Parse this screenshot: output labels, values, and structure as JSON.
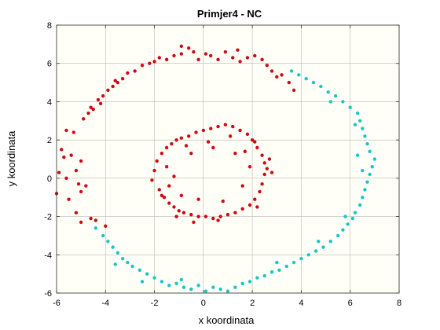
{
  "chart_data": {
    "type": "scatter",
    "title": "Primjer4 - NC",
    "xlabel": "x koordinata",
    "ylabel": "y koordinata",
    "xlim": [
      -6,
      8
    ],
    "ylim": [
      -6,
      8
    ],
    "xticks": [
      -6,
      -4,
      -2,
      0,
      2,
      4,
      6,
      8
    ],
    "yticks": [
      -6,
      -4,
      -2,
      0,
      2,
      4,
      6,
      8
    ],
    "grid": true,
    "colors": {
      "plot_background": "#fffff7",
      "grid": "#b8b8b8",
      "axis": "#333333"
    },
    "series": [
      {
        "color": "#cc0a14",
        "points": [
          [
            -6.0,
            -0.8
          ],
          [
            -5.9,
            0.3
          ],
          [
            -5.8,
            1.5
          ],
          [
            -5.7,
            1.1
          ],
          [
            -5.6,
            0.0
          ],
          [
            -5.5,
            -1.1
          ],
          [
            -5.4,
            1.2
          ],
          [
            -5.3,
            2.4
          ],
          [
            -5.2,
            -1.8
          ],
          [
            -5.1,
            -0.3
          ],
          [
            -5.0,
            0.9
          ],
          [
            -5.2,
            0.4
          ],
          [
            -5.0,
            -0.7
          ],
          [
            -4.9,
            3.1
          ],
          [
            -4.7,
            3.4
          ],
          [
            -4.6,
            3.7
          ],
          [
            -4.6,
            -2.1
          ],
          [
            -4.5,
            3.6
          ],
          [
            -4.4,
            -2.2
          ],
          [
            -4.3,
            4.1
          ],
          [
            -4.1,
            4.3
          ],
          [
            -4.0,
            -2.5
          ],
          [
            -3.9,
            4.6
          ],
          [
            -3.7,
            4.8
          ],
          [
            -3.5,
            5.0
          ],
          [
            -3.3,
            5.2
          ],
          [
            -3.1,
            5.5
          ],
          [
            -2.8,
            5.6
          ],
          [
            -2.5,
            5.9
          ],
          [
            -2.2,
            6.0
          ],
          [
            -2.0,
            6.1
          ],
          [
            -1.8,
            6.3
          ],
          [
            -1.5,
            6.2
          ],
          [
            -1.2,
            6.4
          ],
          [
            -0.9,
            6.5
          ],
          [
            -0.6,
            6.8
          ],
          [
            -0.4,
            6.6
          ],
          [
            -0.2,
            6.2
          ],
          [
            0.1,
            6.5
          ],
          [
            0.3,
            6.4
          ],
          [
            0.6,
            6.2
          ],
          [
            0.9,
            6.6
          ],
          [
            1.2,
            6.3
          ],
          [
            1.5,
            6.1
          ],
          [
            1.8,
            6.3
          ],
          [
            2.1,
            6.4
          ],
          [
            2.4,
            6.2
          ],
          [
            2.6,
            5.9
          ],
          [
            2.8,
            5.6
          ],
          [
            3.0,
            5.3
          ],
          [
            3.2,
            5.4
          ],
          [
            3.5,
            5.0
          ],
          [
            3.7,
            4.6
          ],
          [
            -5.0,
            -2.3
          ],
          [
            -4.8,
            -0.4
          ],
          [
            -5.6,
            2.5
          ],
          [
            -4.2,
            3.9
          ],
          [
            -3.6,
            5.1
          ],
          [
            -0.9,
            6.9
          ],
          [
            1.4,
            6.7
          ],
          [
            -2.1,
            -0.1
          ],
          [
            -2.0,
            0.4
          ],
          [
            -1.9,
            0.9
          ],
          [
            -1.8,
            -0.6
          ],
          [
            -1.7,
            1.3
          ],
          [
            -1.6,
            -1.0
          ],
          [
            -1.5,
            1.6
          ],
          [
            -1.4,
            -1.3
          ],
          [
            -1.3,
            1.8
          ],
          [
            -1.2,
            -1.5
          ],
          [
            -1.1,
            2.0
          ],
          [
            -1.0,
            -1.7
          ],
          [
            -0.9,
            2.1
          ],
          [
            -0.8,
            -1.8
          ],
          [
            -0.6,
            2.2
          ],
          [
            -0.5,
            -1.9
          ],
          [
            -0.3,
            2.4
          ],
          [
            -0.2,
            -2.0
          ],
          [
            0.0,
            2.5
          ],
          [
            0.1,
            -2.0
          ],
          [
            0.3,
            2.6
          ],
          [
            0.4,
            -2.1
          ],
          [
            0.6,
            2.7
          ],
          [
            0.7,
            -2.0
          ],
          [
            0.9,
            2.8
          ],
          [
            1.0,
            -1.9
          ],
          [
            1.2,
            2.7
          ],
          [
            1.3,
            -1.8
          ],
          [
            1.5,
            2.5
          ],
          [
            1.6,
            -1.6
          ],
          [
            1.8,
            2.3
          ],
          [
            1.9,
            -1.4
          ],
          [
            2.0,
            2.0
          ],
          [
            2.1,
            -1.1
          ],
          [
            2.2,
            1.6
          ],
          [
            2.3,
            -0.7
          ],
          [
            2.4,
            1.2
          ],
          [
            2.4,
            -0.3
          ],
          [
            2.5,
            0.8
          ],
          [
            2.5,
            0.2
          ],
          [
            2.6,
            0.5
          ],
          [
            2.7,
            1.0
          ],
          [
            -1.2,
            0.1
          ],
          [
            -0.9,
            -0.9
          ],
          [
            -0.5,
            1.3
          ],
          [
            -0.2,
            -1.1
          ],
          [
            0.4,
            1.6
          ],
          [
            0.8,
            -1.2
          ],
          [
            1.3,
            1.3
          ],
          [
            1.6,
            -0.4
          ],
          [
            1.9,
            0.6
          ],
          [
            -1.5,
            0.6
          ],
          [
            -1.4,
            -0.4
          ],
          [
            -0.7,
            1.7
          ],
          [
            0.2,
            1.9
          ],
          [
            1.1,
            2.2
          ],
          [
            2.1,
            1.9
          ],
          [
            2.2,
            -1.5
          ],
          [
            0.6,
            -2.2
          ],
          [
            -0.4,
            -2.3
          ],
          [
            -1.1,
            -2.0
          ],
          [
            -1.7,
            -0.9
          ],
          [
            1.7,
            1.4
          ],
          [
            2.8,
            0.3
          ]
        ]
      },
      {
        "color": "#17c7c7",
        "points": [
          [
            -4.4,
            -2.6
          ],
          [
            -4.1,
            -3.0
          ],
          [
            -3.9,
            -3.3
          ],
          [
            -3.7,
            -3.6
          ],
          [
            -3.5,
            -3.9
          ],
          [
            -3.3,
            -4.2
          ],
          [
            -3.1,
            -4.4
          ],
          [
            -2.9,
            -4.6
          ],
          [
            -2.6,
            -4.8
          ],
          [
            -2.3,
            -5.0
          ],
          [
            -2.0,
            -5.2
          ],
          [
            -1.7,
            -5.4
          ],
          [
            -1.4,
            -5.6
          ],
          [
            -1.1,
            -5.5
          ],
          [
            -0.8,
            -5.7
          ],
          [
            -0.5,
            -5.8
          ],
          [
            -0.2,
            -5.6
          ],
          [
            0.1,
            -5.9
          ],
          [
            0.4,
            -5.7
          ],
          [
            0.7,
            -5.8
          ],
          [
            1.0,
            -5.9
          ],
          [
            1.3,
            -5.7
          ],
          [
            1.6,
            -5.5
          ],
          [
            1.9,
            -5.4
          ],
          [
            2.2,
            -5.2
          ],
          [
            2.5,
            -5.1
          ],
          [
            2.8,
            -4.9
          ],
          [
            3.1,
            -4.8
          ],
          [
            3.4,
            -4.6
          ],
          [
            3.7,
            -4.4
          ],
          [
            4.0,
            -4.2
          ],
          [
            4.3,
            -4.0
          ],
          [
            4.6,
            -3.8
          ],
          [
            4.9,
            -3.6
          ],
          [
            5.2,
            -3.3
          ],
          [
            5.5,
            -3.0
          ],
          [
            5.7,
            -2.7
          ],
          [
            5.9,
            -2.4
          ],
          [
            6.1,
            -2.1
          ],
          [
            6.2,
            -1.8
          ],
          [
            6.4,
            -1.4
          ],
          [
            6.5,
            -1.0
          ],
          [
            6.6,
            -0.6
          ],
          [
            6.7,
            -0.2
          ],
          [
            6.8,
            0.2
          ],
          [
            6.9,
            0.6
          ],
          [
            7.0,
            1.0
          ],
          [
            6.8,
            1.4
          ],
          [
            6.7,
            1.8
          ],
          [
            6.6,
            2.2
          ],
          [
            6.5,
            2.6
          ],
          [
            6.4,
            3.0
          ],
          [
            6.3,
            3.4
          ],
          [
            6.0,
            3.7
          ],
          [
            5.7,
            4.0
          ],
          [
            5.4,
            4.3
          ],
          [
            5.1,
            4.5
          ],
          [
            4.8,
            4.8
          ],
          [
            4.5,
            5.0
          ],
          [
            4.2,
            5.2
          ],
          [
            3.9,
            5.4
          ],
          [
            3.6,
            5.6
          ],
          [
            5.8,
            -2.0
          ],
          [
            6.3,
            1.2
          ],
          [
            6.5,
            0.4
          ],
          [
            4.7,
            -3.3
          ],
          [
            3.0,
            -4.4
          ],
          [
            -0.9,
            -5.3
          ],
          [
            -2.5,
            -5.4
          ],
          [
            -3.6,
            -4.5
          ],
          [
            5.2,
            4.0
          ],
          [
            6.2,
            2.8
          ]
        ]
      }
    ]
  }
}
